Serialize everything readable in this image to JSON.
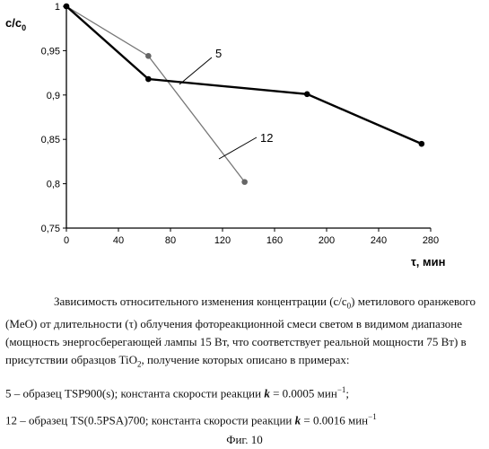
{
  "chart_data": {
    "type": "line",
    "ylabel_main": "c/c",
    "ylabel_sub": "0",
    "xlabel": "τ, мин",
    "xlim": [
      0,
      280
    ],
    "ylim": [
      0.75,
      1.0
    ],
    "xticks": [
      "0",
      "40",
      "80",
      "120",
      "160",
      "200",
      "240",
      "280"
    ],
    "yticks": [
      "0,75",
      "0,8",
      "0,85",
      "0,9",
      "0,95",
      "1"
    ],
    "grid": false,
    "series": [
      {
        "name": "5",
        "color": "#000000",
        "marker_color": "#000000",
        "x": [
          0,
          63,
          185,
          273
        ],
        "y": [
          1.0,
          0.918,
          0.901,
          0.845
        ]
      },
      {
        "name": "12",
        "color": "#777777",
        "marker_color": "#666666",
        "x": [
          0,
          63,
          137
        ],
        "y": [
          1.0,
          0.944,
          0.802
        ]
      }
    ]
  },
  "caption": {
    "paragraph_a": "Зависимость относительного изменения концентрации (c/c",
    "paragraph_sub": "0",
    "paragraph_b": ") метилового оранжевого (MeO) от длительности (τ) облучения фотореакционной смеси светом в видимом диапазоне (мощность энергосберегающей лампы 15 Вт, что соответствует реальной мощности 75 Вт) в присутствии образцов TiO",
    "paragraph_tio_sub": "2",
    "paragraph_c": ", получение которых описано в примерах:",
    "legend5_a": "5 – образец TSP900(s);  константа скорости реакции ",
    "legend5_k": "k",
    "legend5_b": " = 0.0005 мин",
    "legend5_sup": "−1",
    "legend5_c": ";",
    "legend12_a": "12 – образец TS(0.5PSA)700;  константа скорости реакции ",
    "legend12_k": "k",
    "legend12_b": " = 0.0016 мин",
    "legend12_sup": "−1",
    "figure_label": "Фиг. 10"
  }
}
